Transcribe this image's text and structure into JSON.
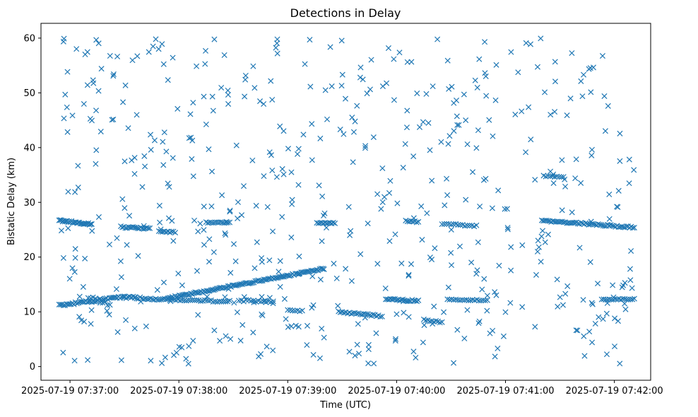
{
  "chart_data": {
    "type": "scatter",
    "title": "Detections in Delay",
    "xlabel": "Time (UTC)",
    "ylabel": "Bistatic Delay (km)",
    "marker": "x",
    "color": "#1f77b4",
    "xlim_seconds": [
      -16,
      320
    ],
    "ylim": [
      -2.5,
      62.7
    ],
    "x_ticks": [
      {
        "t": 0,
        "label": "2025-07-19 07:37:00"
      },
      {
        "t": 60,
        "label": "2025-07-19 07:38:00"
      },
      {
        "t": 120,
        "label": "2025-07-19 07:39:00"
      },
      {
        "t": 180,
        "label": "2025-07-19 07:40:00"
      },
      {
        "t": 240,
        "label": "2025-07-19 07:41:00"
      },
      {
        "t": 300,
        "label": "2025-07-19 07:42:00"
      }
    ],
    "y_ticks": [
      0,
      10,
      20,
      30,
      40,
      50,
      60
    ],
    "time_range_seconds": [
      -6,
      311
    ],
    "noise_seed": 7,
    "noise_count": 560,
    "tracks": [
      {
        "t_start": -6,
        "t_end": 12,
        "y_start": 26.7,
        "y_end": 26.0,
        "n": 30,
        "jitter": 0.15
      },
      {
        "t_start": 28,
        "t_end": 44,
        "y_start": 25.5,
        "y_end": 25.2,
        "n": 20,
        "jitter": 0.15
      },
      {
        "t_start": 49,
        "t_end": 58,
        "y_start": 24.7,
        "y_end": 24.5,
        "n": 10,
        "jitter": 0.15
      },
      {
        "t_start": 75,
        "t_end": 88,
        "y_start": 26.3,
        "y_end": 26.3,
        "n": 14,
        "jitter": 0.1
      },
      {
        "t_start": 136,
        "t_end": 146,
        "y_start": 26.2,
        "y_end": 26.2,
        "n": 12,
        "jitter": 0.1
      },
      {
        "t_start": 185,
        "t_end": 192,
        "y_start": 26.6,
        "y_end": 26.4,
        "n": 8,
        "jitter": 0.1
      },
      {
        "t_start": 205,
        "t_end": 224,
        "y_start": 26.1,
        "y_end": 25.7,
        "n": 16,
        "jitter": 0.15
      },
      {
        "t_start": 260,
        "t_end": 311,
        "y_start": 26.7,
        "y_end": 25.4,
        "n": 60,
        "jitter": 0.15
      },
      {
        "t_start": -6,
        "t_end": 30,
        "y_start": 11.2,
        "y_end": 12.7,
        "n": 45,
        "jitter": 0.2
      },
      {
        "t_start": 30,
        "t_end": 54,
        "y_start": 12.7,
        "y_end": 12.2,
        "n": 26,
        "jitter": 0.2
      },
      {
        "t_start": 54,
        "t_end": 140,
        "y_start": 12.5,
        "y_end": 17.9,
        "n": 110,
        "jitter": 0.15
      },
      {
        "t_start": 55,
        "t_end": 88,
        "y_start": 12.2,
        "y_end": 11.9,
        "n": 30,
        "jitter": 0.15
      },
      {
        "t_start": 93,
        "t_end": 112,
        "y_start": 12.1,
        "y_end": 11.8,
        "n": 15,
        "jitter": 0.2
      },
      {
        "t_start": 120,
        "t_end": 128,
        "y_start": 10.4,
        "y_end": 10.2,
        "n": 7,
        "jitter": 0.15
      },
      {
        "t_start": 148,
        "t_end": 172,
        "y_start": 10.0,
        "y_end": 9.2,
        "n": 25,
        "jitter": 0.15
      },
      {
        "t_start": 174,
        "t_end": 192,
        "y_start": 12.3,
        "y_end": 12.0,
        "n": 22,
        "jitter": 0.15
      },
      {
        "t_start": 195,
        "t_end": 205,
        "y_start": 8.5,
        "y_end": 8.1,
        "n": 10,
        "jitter": 0.15
      },
      {
        "t_start": 208,
        "t_end": 230,
        "y_start": 12.2,
        "y_end": 12.1,
        "n": 20,
        "jitter": 0.1
      },
      {
        "t_start": 293,
        "t_end": 311,
        "y_start": 12.3,
        "y_end": 12.3,
        "n": 18,
        "jitter": 0.1
      },
      {
        "t_start": 261,
        "t_end": 272,
        "y_start": 34.8,
        "y_end": 34.6,
        "n": 10,
        "jitter": 0.1
      },
      {
        "t_start": 10,
        "t_end": 22,
        "y_start": 12.8,
        "y_end": 11.2,
        "n": 10,
        "jitter": 0.3
      }
    ]
  }
}
